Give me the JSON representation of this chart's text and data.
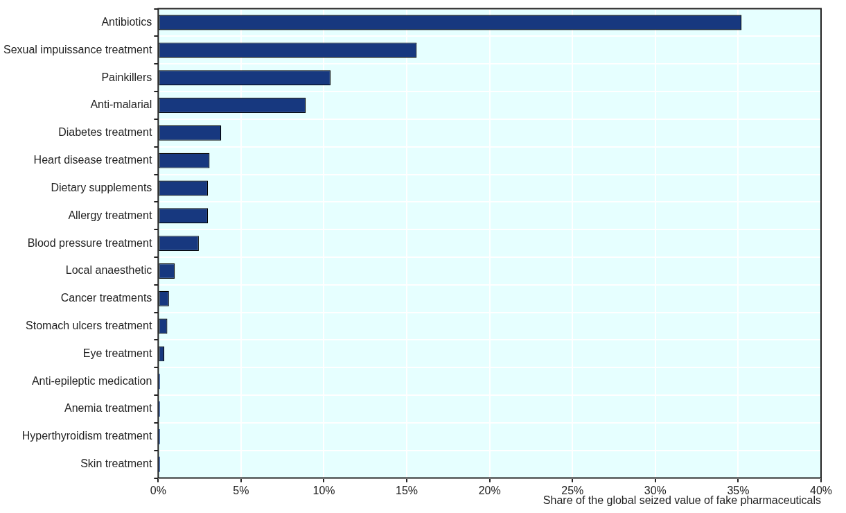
{
  "chart_data": {
    "type": "bar",
    "orientation": "horizontal",
    "categories": [
      "Antibiotics",
      "Sexual impuissance treatment",
      "Painkillers",
      "Anti-malarial",
      "Diabetes treatment",
      "Heart disease treatment",
      "Dietary supplements",
      "Allergy treatment",
      "Blood pressure treatment",
      "Local anaesthetic",
      "Cancer treatments",
      "Stomach ulcers treatment",
      "Eye treatment",
      "Anti-epileptic medication",
      "Anemia treatment",
      "Hyperthyroidism treatment",
      "Skin treatment"
    ],
    "values": [
      35.2,
      15.6,
      10.4,
      8.9,
      3.8,
      3.1,
      3.0,
      3.0,
      2.45,
      1.0,
      0.65,
      0.55,
      0.37,
      0.1,
      0.1,
      0.1,
      0.1
    ],
    "color": "#17387f",
    "xlim": [
      0,
      40
    ],
    "xticks": [
      {
        "value": 0,
        "label": "0%"
      },
      {
        "value": 5,
        "label": "5%"
      },
      {
        "value": 10,
        "label": "10%"
      },
      {
        "value": 15,
        "label": "15%"
      },
      {
        "value": 20,
        "label": "20%"
      },
      {
        "value": 25,
        "label": "25%"
      },
      {
        "value": 30,
        "label": "30%"
      },
      {
        "value": 35,
        "label": "35%"
      },
      {
        "value": 40,
        "label": "40%"
      }
    ],
    "xlabel": "Share of the global seized value of fake pharmaceuticals",
    "grid": true,
    "legend": false
  }
}
